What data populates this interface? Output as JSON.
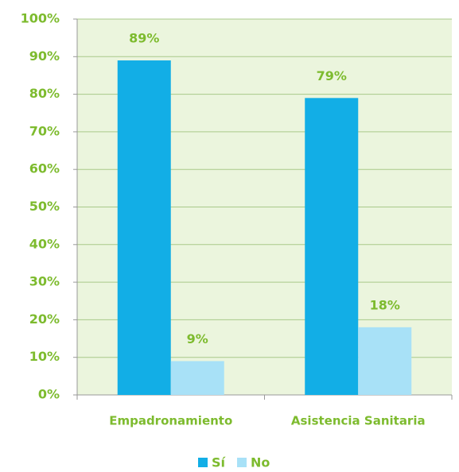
{
  "chart_data": {
    "type": "bar",
    "categories": [
      "Empadronamiento",
      "Asistencia Sanitaria"
    ],
    "series": [
      {
        "name": "Sí",
        "color": "#12aee6",
        "values": [
          89,
          79
        ],
        "value_labels": [
          "89%",
          "79%"
        ]
      },
      {
        "name": "No",
        "color": "#a8e1f7",
        "values": [
          9,
          18
        ],
        "value_labels": [
          "9%",
          "18%"
        ]
      }
    ],
    "ylim": [
      0,
      100
    ],
    "yticks": [
      {
        "value": 0,
        "label": "0%"
      },
      {
        "value": 10,
        "label": "10%"
      },
      {
        "value": 20,
        "label": "20%"
      },
      {
        "value": 30,
        "label": "30%"
      },
      {
        "value": 40,
        "label": "40%"
      },
      {
        "value": 50,
        "label": "50%"
      },
      {
        "value": 60,
        "label": "60%"
      },
      {
        "value": 70,
        "label": "70%"
      },
      {
        "value": 80,
        "label": "80%"
      },
      {
        "value": 90,
        "label": "90%"
      },
      {
        "value": 100,
        "label": "100%"
      }
    ],
    "grid": true,
    "legend": "bottom"
  }
}
